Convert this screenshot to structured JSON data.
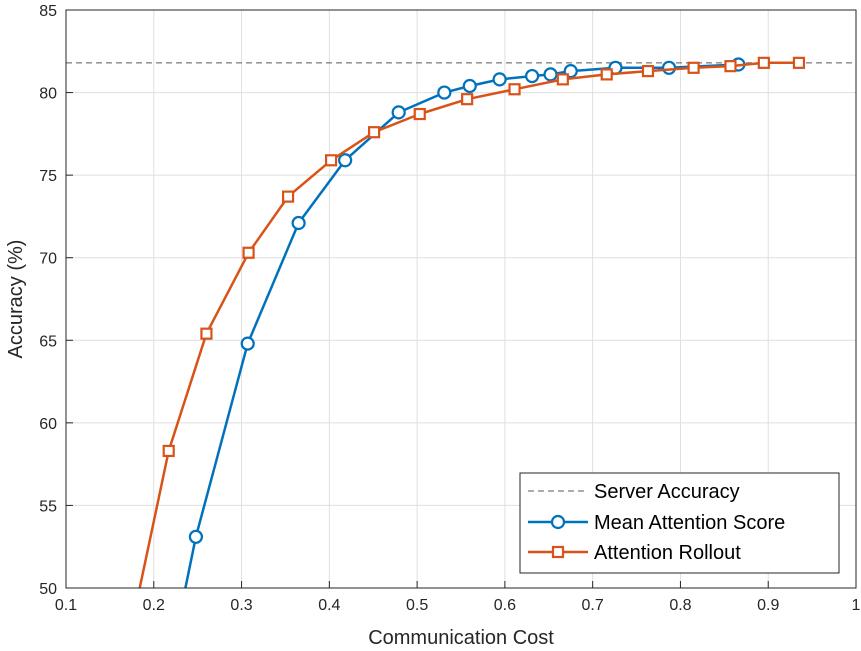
{
  "chart_data": {
    "type": "line",
    "xlabel": "Communication Cost",
    "ylabel": "Accuracy (%)",
    "xlim": [
      0.1,
      1
    ],
    "ylim": [
      50,
      85
    ],
    "xticks": [
      "0.1",
      "0.2",
      "0.3",
      "0.4",
      "0.5",
      "0.6",
      "0.7",
      "0.8",
      "0.9",
      "1"
    ],
    "yticks": [
      "50",
      "55",
      "60",
      "65",
      "70",
      "75",
      "80",
      "85"
    ],
    "grid": true,
    "legend_position": "bottom-right",
    "reference_line": {
      "name": "Server Accuracy",
      "y": 81.8,
      "color": "#595959",
      "style": "dashed"
    },
    "series": [
      {
        "name": "Mean Attention Score",
        "color": "#0072BD",
        "marker": "circle",
        "line_points": [
          [
            0.236,
            50.0
          ]
        ],
        "points": [
          [
            0.248,
            53.1
          ],
          [
            0.307,
            64.8
          ],
          [
            0.365,
            72.1
          ],
          [
            0.418,
            75.9
          ],
          [
            0.479,
            78.8
          ],
          [
            0.531,
            80.0
          ],
          [
            0.56,
            80.4
          ],
          [
            0.594,
            80.8
          ],
          [
            0.631,
            81.0
          ],
          [
            0.652,
            81.1
          ],
          [
            0.675,
            81.3
          ],
          [
            0.726,
            81.5
          ],
          [
            0.787,
            81.5
          ],
          [
            0.866,
            81.7
          ]
        ]
      },
      {
        "name": "Attention Rollout",
        "color": "#D95319",
        "marker": "square",
        "line_points": [
          [
            0.184,
            50.0
          ]
        ],
        "points": [
          [
            0.217,
            58.3
          ],
          [
            0.26,
            65.4
          ],
          [
            0.308,
            70.3
          ],
          [
            0.353,
            73.7
          ],
          [
            0.402,
            75.9
          ],
          [
            0.451,
            77.6
          ],
          [
            0.503,
            78.7
          ],
          [
            0.557,
            79.6
          ],
          [
            0.611,
            80.2
          ],
          [
            0.666,
            80.8
          ],
          [
            0.716,
            81.1
          ],
          [
            0.763,
            81.3
          ],
          [
            0.815,
            81.5
          ],
          [
            0.857,
            81.6
          ],
          [
            0.895,
            81.8
          ],
          [
            0.935,
            81.8
          ]
        ]
      }
    ]
  }
}
